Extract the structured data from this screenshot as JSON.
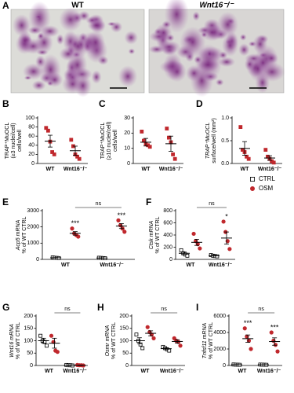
{
  "panel_a": {
    "label": "A",
    "images": [
      {
        "title": "WT"
      },
      {
        "title": "Wnt16⁻/⁻"
      }
    ]
  },
  "chart_data": [
    {
      "type": "dot",
      "panel": "B",
      "y_label": [
        "TRAP⁺MuOCL",
        "(≥3 nuclei/cell)",
        "cells/well"
      ],
      "categories": [
        "WT",
        "Wnt16⁻/⁻"
      ],
      "ylim": [
        0,
        100
      ],
      "yticks": [
        0,
        20,
        40,
        60,
        80,
        100
      ],
      "series": [
        {
          "color": "#c0282d",
          "marker": "square",
          "filled": true,
          "values": [
            [
              78,
              72,
              48,
              25,
              20
            ],
            [
              52,
              38,
              20,
              15,
              10
            ]
          ],
          "mean": [
            49,
            28
          ],
          "sem": [
            13,
            10
          ]
        }
      ]
    },
    {
      "type": "dot",
      "panel": "C",
      "y_label": [
        "TRAP⁺MuOCL",
        "(≥10 nuclei/cell)",
        "cells/well"
      ],
      "categories": [
        "WT",
        "Wnt16⁻/⁻"
      ],
      "ylim": [
        0,
        30
      ],
      "yticks": [
        0,
        10,
        20,
        30
      ],
      "series": [
        {
          "color": "#c0282d",
          "marker": "square",
          "filled": true,
          "values": [
            [
              21,
              15,
              13,
              12,
              11
            ],
            [
              23,
              17,
              14,
              6,
              3
            ]
          ],
          "mean": [
            14,
            13
          ],
          "sem": [
            2.5,
            5
          ]
        }
      ]
    },
    {
      "type": "dot",
      "panel": "D",
      "y_label": [
        "TRAP⁺MuOCL",
        "surface/well (mm²)"
      ],
      "categories": [
        "WT",
        "Wnt16⁻/⁻"
      ],
      "ylim": [
        0,
        1.0
      ],
      "yticks": [
        {
          "value": 0,
          "label": "0.0"
        },
        {
          "value": 0.5,
          "label": "0.5"
        },
        {
          "value": 1.0,
          "label": "1.0"
        }
      ],
      "series": [
        {
          "color": "#c0282d",
          "marker": "square",
          "filled": true,
          "values": [
            [
              0.8,
              0.3,
              0.25,
              0.15,
              0.1
            ],
            [
              0.3,
              0.15,
              0.1,
              0.05,
              0.02
            ]
          ],
          "mean": [
            0.33,
            0.12
          ],
          "sem": [
            0.15,
            0.05
          ]
        }
      ]
    },
    {
      "type": "dot",
      "panel": "E",
      "y_label": [
        "Acp5 mRNA",
        "% of WT CTRL"
      ],
      "categories": [
        "WT",
        "Wnt16⁻/⁻"
      ],
      "ylim": [
        0,
        3000
      ],
      "yticks": [
        0,
        1000,
        2000,
        3000
      ],
      "bracket": "ns",
      "series": [
        {
          "color": "#000000",
          "marker": "square",
          "filled": false,
          "values": [
            [
              120,
              100,
              90,
              80
            ],
            [
              100,
              90,
              80,
              70
            ]
          ],
          "mean": [
            100,
            85
          ],
          "sem": [
            10,
            8
          ]
        },
        {
          "color": "#c0282d",
          "marker": "circle",
          "filled": true,
          "values": [
            [
              1900,
              1600,
              1500,
              1400
            ],
            [
              2400,
              2100,
              1900,
              1700
            ]
          ],
          "mean": [
            1600,
            2050
          ],
          "sem": [
            110,
            150
          ],
          "annotations": [
            "***",
            "***"
          ]
        }
      ]
    },
    {
      "type": "dot",
      "panel": "F",
      "y_label": [
        "Ctsk mRNA",
        "% of WT CTRL"
      ],
      "categories": [
        "WT",
        "Wnt16⁻/⁻"
      ],
      "ylim": [
        0,
        800
      ],
      "yticks": [
        0,
        200,
        400,
        600,
        800
      ],
      "bracket": "ns",
      "legend": "right",
      "series": [
        {
          "name": "CTRL",
          "color": "#000000",
          "marker": "square",
          "filled": false,
          "values": [
            [
              150,
              100,
              80,
              60
            ],
            [
              70,
              60,
              55,
              50
            ]
          ],
          "mean": [
            100,
            60
          ],
          "sem": [
            20,
            5
          ]
        },
        {
          "name": "OSM",
          "color": "#c0282d",
          "marker": "circle",
          "filled": true,
          "values": [
            [
              420,
              300,
              250,
              180
            ],
            [
              620,
              450,
              300,
              170
            ]
          ],
          "mean": [
            280,
            350
          ],
          "sem": [
            50,
            100
          ],
          "annotations": [
            null,
            "*"
          ]
        }
      ]
    },
    {
      "type": "dot",
      "panel": "G",
      "y_label": [
        "Wnt16 mRNA",
        "% of WT CTRL"
      ],
      "categories": [
        "WT",
        "Wnt16⁻/⁻"
      ],
      "ylim": [
        0,
        200
      ],
      "yticks": [
        0,
        50,
        100,
        150,
        200
      ],
      "bracket": "ns",
      "series": [
        {
          "color": "#000000",
          "marker": "square",
          "filled": false,
          "values": [
            [
              120,
              100,
              95,
              80
            ],
            [
              2,
              1,
              1,
              0
            ]
          ],
          "mean": [
            100,
            1
          ],
          "sem": [
            10,
            0.5
          ]
        },
        {
          "color": "#c0282d",
          "marker": "circle",
          "filled": true,
          "values": [
            [
              120,
              95,
              60,
              55
            ],
            [
              2,
              1,
              1,
              0
            ]
          ],
          "mean": [
            90,
            1
          ],
          "sem": [
            20,
            0.5
          ]
        }
      ]
    },
    {
      "type": "dot",
      "panel": "H",
      "y_label": [
        "Osmr mRNA",
        "% of WT CTRL"
      ],
      "categories": [
        "WT",
        "Wnt16⁻/⁻"
      ],
      "ylim": [
        0,
        200
      ],
      "yticks": [
        0,
        50,
        100,
        150,
        200
      ],
      "bracket": "ns",
      "series": [
        {
          "color": "#000000",
          "marker": "square",
          "filled": false,
          "values": [
            [
              125,
              100,
              85,
              70
            ],
            [
              75,
              70,
              65,
              60
            ]
          ],
          "mean": [
            100,
            68
          ],
          "sem": [
            12,
            4
          ]
        },
        {
          "color": "#c0282d",
          "marker": "circle",
          "filled": true,
          "values": [
            [
              155,
              135,
              125,
              110
            ],
            [
              110,
              100,
              95,
              80
            ]
          ],
          "mean": [
            130,
            97
          ],
          "sem": [
            10,
            7
          ]
        }
      ]
    },
    {
      "type": "dot",
      "panel": "I",
      "y_label": [
        "Tnfsf11 mRNA",
        "% of WT CTRL"
      ],
      "categories": [
        "WT",
        "Wnt16⁻/⁻"
      ],
      "ylim": [
        0,
        6000
      ],
      "yticks": [
        0,
        2000,
        4000,
        6000
      ],
      "bracket": "ns",
      "series": [
        {
          "color": "#000000",
          "marker": "square",
          "filled": false,
          "values": [
            [
              120,
              100,
              90,
              80
            ],
            [
              110,
              100,
              90,
              80
            ]
          ],
          "mean": [
            100,
            95
          ],
          "sem": [
            10,
            8
          ]
        },
        {
          "color": "#c0282d",
          "marker": "circle",
          "filled": true,
          "values": [
            [
              4500,
              3500,
              3000,
              2000
            ],
            [
              4000,
              3000,
              2500,
              1700
            ]
          ],
          "mean": [
            3250,
            2900
          ],
          "sem": [
            450,
            450
          ],
          "annotations": [
            "***",
            "***"
          ]
        }
      ]
    }
  ]
}
